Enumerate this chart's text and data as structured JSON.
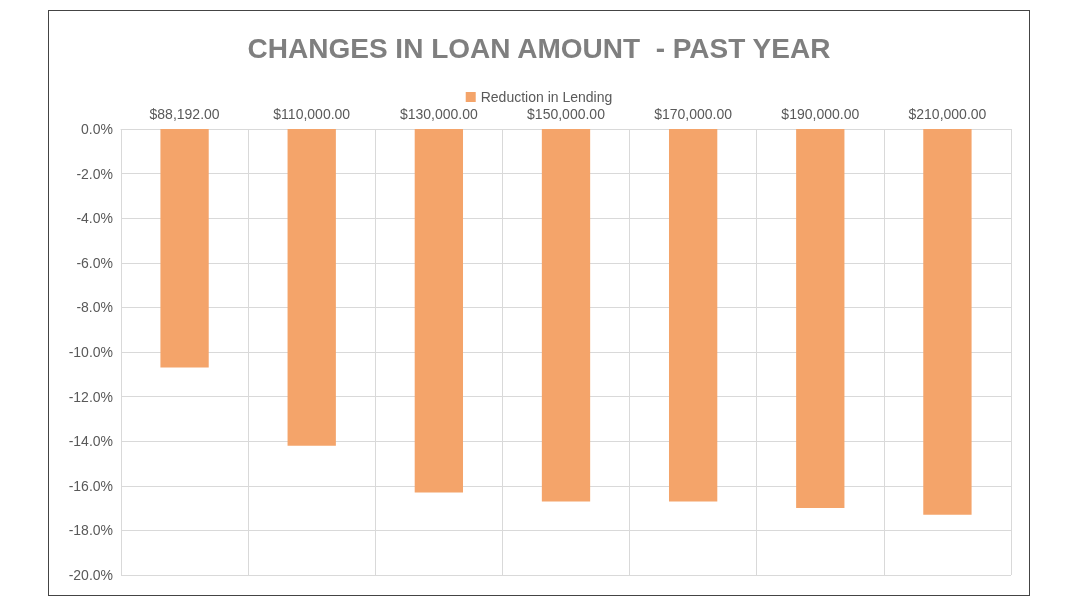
{
  "chart_data": {
    "type": "bar",
    "title": "CHANGES IN LOAN AMOUNT  - PAST YEAR",
    "categories": [
      "$88,192.00",
      "$110,000.00",
      "$130,000.00",
      "$150,000.00",
      "$170,000.00",
      "$190,000.00",
      "$210,000.00"
    ],
    "series": [
      {
        "name": "Reduction in Lending",
        "color": "#f4a46a",
        "values": [
          -10.7,
          -14.2,
          -16.3,
          -16.7,
          -16.7,
          -17.0,
          -17.3
        ]
      }
    ],
    "ylim": [
      -20,
      0
    ],
    "yticks": [
      {
        "value": 0,
        "label": "0.0%"
      },
      {
        "value": -2,
        "label": "-2.0%"
      },
      {
        "value": -4,
        "label": "-4.0%"
      },
      {
        "value": -6,
        "label": "-6.0%"
      },
      {
        "value": -8,
        "label": "-8.0%"
      },
      {
        "value": -10,
        "label": "-10.0%"
      },
      {
        "value": -12,
        "label": "-12.0%"
      },
      {
        "value": -14,
        "label": "-14.0%"
      },
      {
        "value": -16,
        "label": "-16.0%"
      },
      {
        "value": -18,
        "label": "-18.0%"
      },
      {
        "value": -20,
        "label": "-20.0%"
      }
    ],
    "grid": true,
    "legend": "top"
  }
}
